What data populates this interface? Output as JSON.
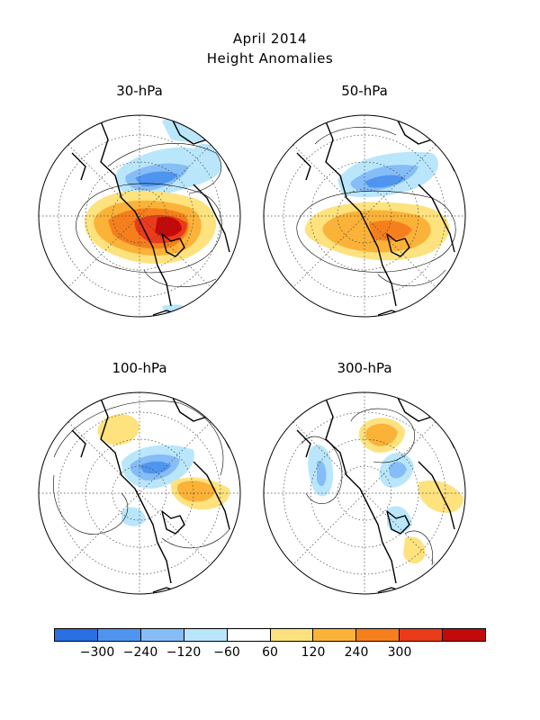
{
  "title": "April 2014",
  "subtitle": "Height Anomalies",
  "panels": [
    {
      "label": "30-hPa"
    },
    {
      "label": "50-hPa"
    },
    {
      "label": "100-hPa"
    },
    {
      "label": "300-hPa"
    }
  ],
  "colorbar": {
    "colors": [
      "#2a6fe0",
      "#4f95f0",
      "#86bdf7",
      "#b9e6fb",
      "#ffffff",
      "#fde27e",
      "#fbb238",
      "#f57f1c",
      "#ea3b1a",
      "#c20a0a"
    ],
    "ticks": [
      "−300",
      "−240",
      "−120",
      "−60",
      "60",
      "120",
      "240",
      "300"
    ]
  }
}
